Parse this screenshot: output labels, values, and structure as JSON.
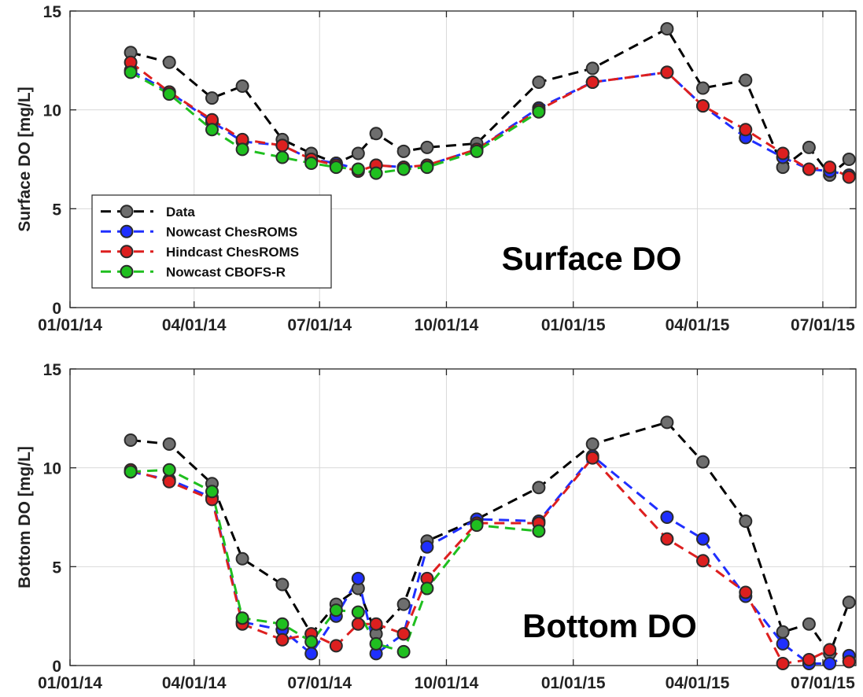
{
  "chart_data": [
    {
      "type": "line",
      "title": "Surface DO",
      "xlabel": "",
      "ylabel": "Surface DO [mg/L]",
      "ylim": [
        0,
        15
      ],
      "yticks": [
        "0",
        "5",
        "10",
        "15"
      ],
      "xlim": [
        "2014-01-01",
        "2015-07-25"
      ],
      "xticks": [
        {
          "date": "2014-01-01",
          "label": "01/01/14"
        },
        {
          "date": "2014-04-01",
          "label": "04/01/14"
        },
        {
          "date": "2014-07-01",
          "label": "07/01/14"
        },
        {
          "date": "2014-10-01",
          "label": "10/01/14"
        },
        {
          "date": "2015-01-01",
          "label": "01/01/15"
        },
        {
          "date": "2015-04-01",
          "label": "04/01/15"
        },
        {
          "date": "2015-07-01",
          "label": "07/01/15"
        }
      ],
      "grid": true,
      "legend_position": "lower-left",
      "series": [
        {
          "name": "Data",
          "color": "#000000",
          "x": [
            "2014-02-14",
            "2014-03-14",
            "2014-04-14",
            "2014-05-06",
            "2014-06-04",
            "2014-06-25",
            "2014-07-13",
            "2014-07-29",
            "2014-08-11",
            "2014-08-31",
            "2014-09-17",
            "2014-10-23",
            "2014-12-07",
            "2015-01-15",
            "2015-03-10",
            "2015-04-05",
            "2015-05-06",
            "2015-06-02",
            "2015-06-21",
            "2015-07-06",
            "2015-07-20"
          ],
          "y": [
            12.9,
            12.4,
            10.6,
            11.2,
            8.5,
            7.8,
            7.3,
            7.8,
            8.8,
            7.9,
            8.1,
            8.3,
            11.4,
            12.1,
            14.1,
            11.1,
            11.5,
            7.1,
            8.1,
            6.7,
            7.5
          ]
        },
        {
          "name": "Nowcast ChesROMS",
          "color": "#1f2fff",
          "x": [
            "2014-02-14",
            "2014-03-14",
            "2014-04-14",
            "2014-05-06",
            "2014-06-04",
            "2014-06-25",
            "2014-07-13",
            "2014-07-29",
            "2014-08-11",
            "2014-08-31",
            "2014-09-17",
            "2014-10-23",
            "2014-12-07",
            "2015-01-15",
            "2015-03-10",
            "2015-04-05",
            "2015-05-06",
            "2015-06-02",
            "2015-06-21",
            "2015-07-06",
            "2015-07-20"
          ],
          "y": [
            12.0,
            10.9,
            9.4,
            8.4,
            8.2,
            7.5,
            7.3,
            7.0,
            7.2,
            7.1,
            7.2,
            8.0,
            10.1,
            11.4,
            11.9,
            10.2,
            8.6,
            7.6,
            7.0,
            6.9,
            6.7
          ]
        },
        {
          "name": "Hindcast ChesROMS",
          "color": "#dd1f1f",
          "x": [
            "2014-02-14",
            "2014-03-14",
            "2014-04-14",
            "2014-05-06",
            "2014-06-04",
            "2014-06-25",
            "2014-07-13",
            "2014-07-29",
            "2014-08-11",
            "2014-08-31",
            "2014-09-17",
            "2014-10-23",
            "2014-12-07",
            "2015-01-15",
            "2015-03-10",
            "2015-04-05",
            "2015-05-06",
            "2015-06-02",
            "2015-06-21",
            "2015-07-06",
            "2015-07-20"
          ],
          "y": [
            12.4,
            10.9,
            9.5,
            8.5,
            8.2,
            7.5,
            7.2,
            6.9,
            7.2,
            7.1,
            7.2,
            8.0,
            10.0,
            11.4,
            11.9,
            10.2,
            9.0,
            7.8,
            7.0,
            7.1,
            6.6
          ]
        },
        {
          "name": "Nowcast CBOFS-R",
          "color": "#1fbf1f",
          "x": [
            "2014-02-14",
            "2014-03-14",
            "2014-04-14",
            "2014-05-06",
            "2014-06-04",
            "2014-06-25",
            "2014-07-13",
            "2014-07-29",
            "2014-08-11",
            "2014-08-31",
            "2014-09-17",
            "2014-10-23",
            "2014-12-07"
          ],
          "y": [
            11.9,
            10.8,
            9.0,
            8.0,
            7.6,
            7.3,
            7.1,
            7.0,
            6.8,
            7.0,
            7.1,
            7.9,
            9.9
          ]
        }
      ]
    },
    {
      "type": "line",
      "title": "Bottom DO",
      "xlabel": "",
      "ylabel": "Bottom DO [mg/L]",
      "ylim": [
        0,
        15
      ],
      "yticks": [
        "0",
        "5",
        "10",
        "15"
      ],
      "xlim": [
        "2014-01-01",
        "2015-07-25"
      ],
      "xticks": [
        {
          "date": "2014-01-01",
          "label": "01/01/14"
        },
        {
          "date": "2014-04-01",
          "label": "04/01/14"
        },
        {
          "date": "2014-07-01",
          "label": "07/01/14"
        },
        {
          "date": "2014-10-01",
          "label": "10/01/14"
        },
        {
          "date": "2015-01-01",
          "label": "01/01/15"
        },
        {
          "date": "2015-04-01",
          "label": "04/01/15"
        },
        {
          "date": "2015-07-01",
          "label": "07/01/15"
        }
      ],
      "grid": true,
      "legend_position": "none",
      "series": [
        {
          "name": "Data",
          "color": "#000000",
          "x": [
            "2014-02-14",
            "2014-03-14",
            "2014-04-14",
            "2014-05-06",
            "2014-06-04",
            "2014-06-25",
            "2014-07-13",
            "2014-07-29",
            "2014-08-11",
            "2014-08-31",
            "2014-09-17",
            "2014-10-23",
            "2014-12-07",
            "2015-01-15",
            "2015-03-10",
            "2015-04-05",
            "2015-05-06",
            "2015-06-02",
            "2015-06-21",
            "2015-07-06",
            "2015-07-20"
          ],
          "y": [
            11.4,
            11.2,
            9.2,
            5.4,
            4.1,
            1.6,
            3.1,
            3.9,
            1.6,
            3.1,
            6.3,
            7.4,
            9.0,
            11.2,
            12.3,
            10.3,
            7.3,
            1.7,
            2.1,
            0.6,
            3.2
          ]
        },
        {
          "name": "Nowcast ChesROMS",
          "color": "#1f2fff",
          "x": [
            "2014-02-14",
            "2014-03-14",
            "2014-04-14",
            "2014-05-06",
            "2014-06-04",
            "2014-06-25",
            "2014-07-13",
            "2014-07-29",
            "2014-08-11",
            "2014-08-31",
            "2014-09-17",
            "2014-10-23",
            "2014-12-07",
            "2015-01-15",
            "2015-03-10",
            "2015-04-05",
            "2015-05-06",
            "2015-06-02",
            "2015-06-21",
            "2015-07-06",
            "2015-07-20"
          ],
          "y": [
            9.8,
            9.4,
            8.5,
            2.2,
            1.8,
            0.6,
            2.5,
            4.4,
            0.6,
            1.6,
            6.0,
            7.4,
            7.3,
            10.6,
            7.5,
            6.4,
            3.5,
            1.1,
            0.1,
            0.1,
            0.5
          ]
        },
        {
          "name": "Hindcast ChesROMS",
          "color": "#dd1f1f",
          "x": [
            "2014-02-14",
            "2014-03-14",
            "2014-04-14",
            "2014-05-06",
            "2014-06-04",
            "2014-06-25",
            "2014-07-13",
            "2014-07-29",
            "2014-08-11",
            "2014-08-31",
            "2014-09-17",
            "2014-10-23",
            "2014-12-07",
            "2015-01-15",
            "2015-03-10",
            "2015-04-05",
            "2015-05-06",
            "2015-06-02",
            "2015-06-21",
            "2015-07-06",
            "2015-07-20"
          ],
          "y": [
            9.9,
            9.3,
            8.4,
            2.1,
            1.3,
            1.6,
            1.0,
            2.1,
            2.1,
            1.6,
            4.4,
            7.2,
            7.2,
            10.5,
            6.4,
            5.3,
            3.7,
            0.1,
            0.3,
            0.8,
            0.2
          ]
        },
        {
          "name": "Nowcast CBOFS-R",
          "color": "#1fbf1f",
          "x": [
            "2014-02-14",
            "2014-03-14",
            "2014-04-14",
            "2014-05-06",
            "2014-06-04",
            "2014-06-25",
            "2014-07-13",
            "2014-07-29",
            "2014-08-11",
            "2014-08-31",
            "2014-09-17",
            "2014-10-23",
            "2014-12-07"
          ],
          "y": [
            9.8,
            9.9,
            8.8,
            2.4,
            2.1,
            1.2,
            2.8,
            2.7,
            1.1,
            0.7,
            3.9,
            7.1,
            6.8
          ]
        }
      ]
    }
  ]
}
